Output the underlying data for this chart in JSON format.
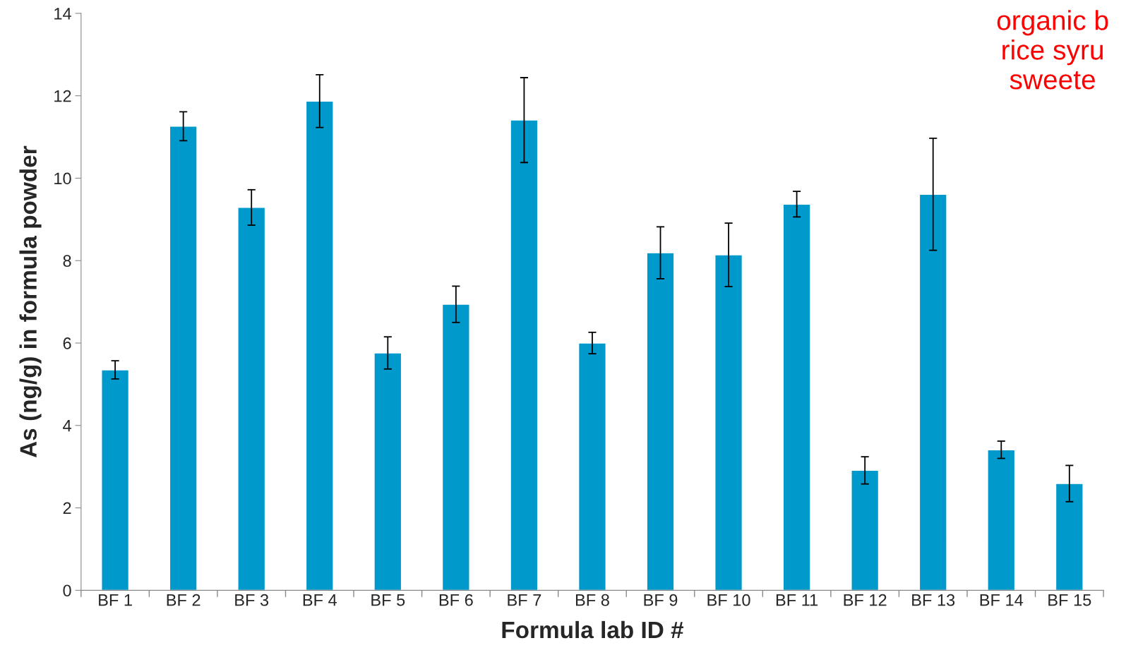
{
  "chart_data": {
    "type": "bar",
    "xlabel": "Formula lab ID #",
    "ylabel": "As (ng/g) in formula powder",
    "categories": [
      "BF 1",
      "BF 2",
      "BF 3",
      "BF 4",
      "BF 5",
      "BF 6",
      "BF 7",
      "BF 8",
      "BF 9",
      "BF 10",
      "BF 11",
      "BF 12",
      "BF 13",
      "BF 14",
      "BF 15"
    ],
    "values": [
      5.35,
      11.26,
      9.29,
      11.87,
      5.76,
      6.94,
      11.41,
      6.0,
      8.19,
      8.14,
      9.37,
      2.91,
      9.61,
      3.41,
      2.59
    ],
    "errors": [
      0.22,
      0.35,
      0.43,
      0.64,
      0.39,
      0.44,
      1.03,
      0.26,
      0.63,
      0.77,
      0.31,
      0.33,
      1.36,
      0.21,
      0.44
    ],
    "color": "#0099cc",
    "ylim": [
      0,
      14
    ],
    "yticks": [
      0,
      2,
      4,
      6,
      8,
      10,
      12,
      14
    ],
    "grid": false,
    "legend": false,
    "annotations": [
      "organic b\nrice syru\nsweete"
    ]
  }
}
